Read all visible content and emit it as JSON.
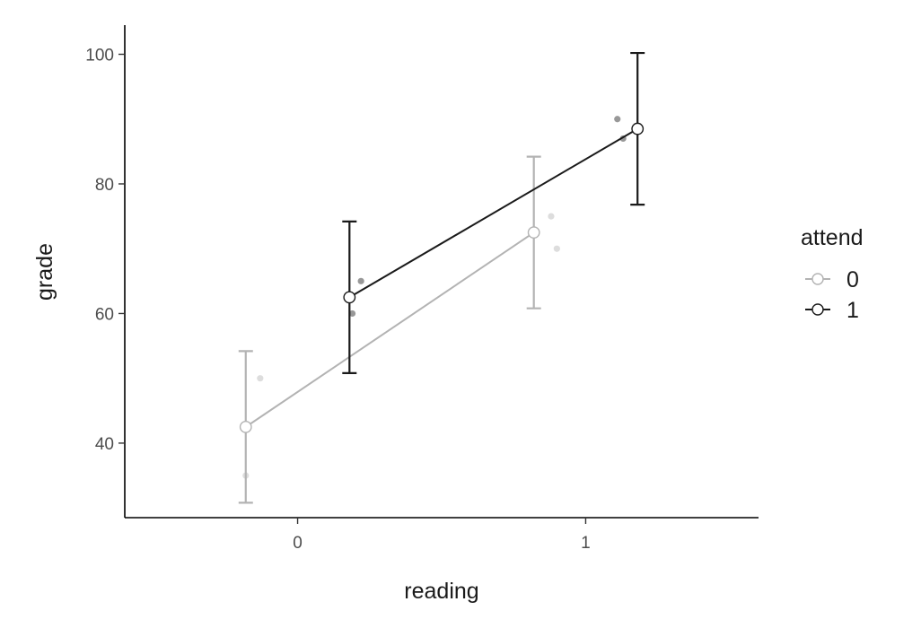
{
  "chart_data": {
    "type": "line",
    "title": "",
    "xlabel": "reading",
    "ylabel": "grade",
    "x_categories": [
      "0",
      "1"
    ],
    "y_ticks": [
      40,
      60,
      80,
      100
    ],
    "xlim": [
      -0.6,
      1.6
    ],
    "ylim": [
      28.5,
      104.5
    ],
    "grid": false,
    "legend": {
      "title": "attend",
      "placement": "right",
      "entries": [
        "0",
        "1"
      ]
    },
    "dodge": 0.18,
    "series": [
      {
        "name": "0",
        "color": "#b3b3b3",
        "marker_fill": "#ffffff",
        "marker_stroke": "#b3b3b3",
        "points": [
          {
            "x": 0,
            "y": 42.5,
            "ymin": 30.8,
            "ymax": 54.2
          },
          {
            "x": 1,
            "y": 72.5,
            "ymin": 60.8,
            "ymax": 84.2
          }
        ],
        "raw": [
          {
            "x": 0,
            "y": 50,
            "jitter": 0.05
          },
          {
            "x": 0,
            "y": 35,
            "jitter": 0.0
          },
          {
            "x": 1,
            "y": 75,
            "jitter": 0.06
          },
          {
            "x": 1,
            "y": 70,
            "jitter": 0.08
          }
        ]
      },
      {
        "name": "1",
        "color": "#1a1a1a",
        "marker_fill": "#ffffff",
        "marker_stroke": "#1a1a1a",
        "points": [
          {
            "x": 0,
            "y": 62.5,
            "ymin": 50.8,
            "ymax": 74.2
          },
          {
            "x": 1,
            "y": 88.5,
            "ymin": 76.8,
            "ymax": 100.2
          }
        ],
        "raw": [
          {
            "x": 0,
            "y": 65,
            "jitter": 0.04
          },
          {
            "x": 0,
            "y": 60,
            "jitter": 0.01
          },
          {
            "x": 1,
            "y": 90,
            "jitter": -0.07
          },
          {
            "x": 1,
            "y": 87,
            "jitter": -0.05
          }
        ]
      }
    ]
  }
}
